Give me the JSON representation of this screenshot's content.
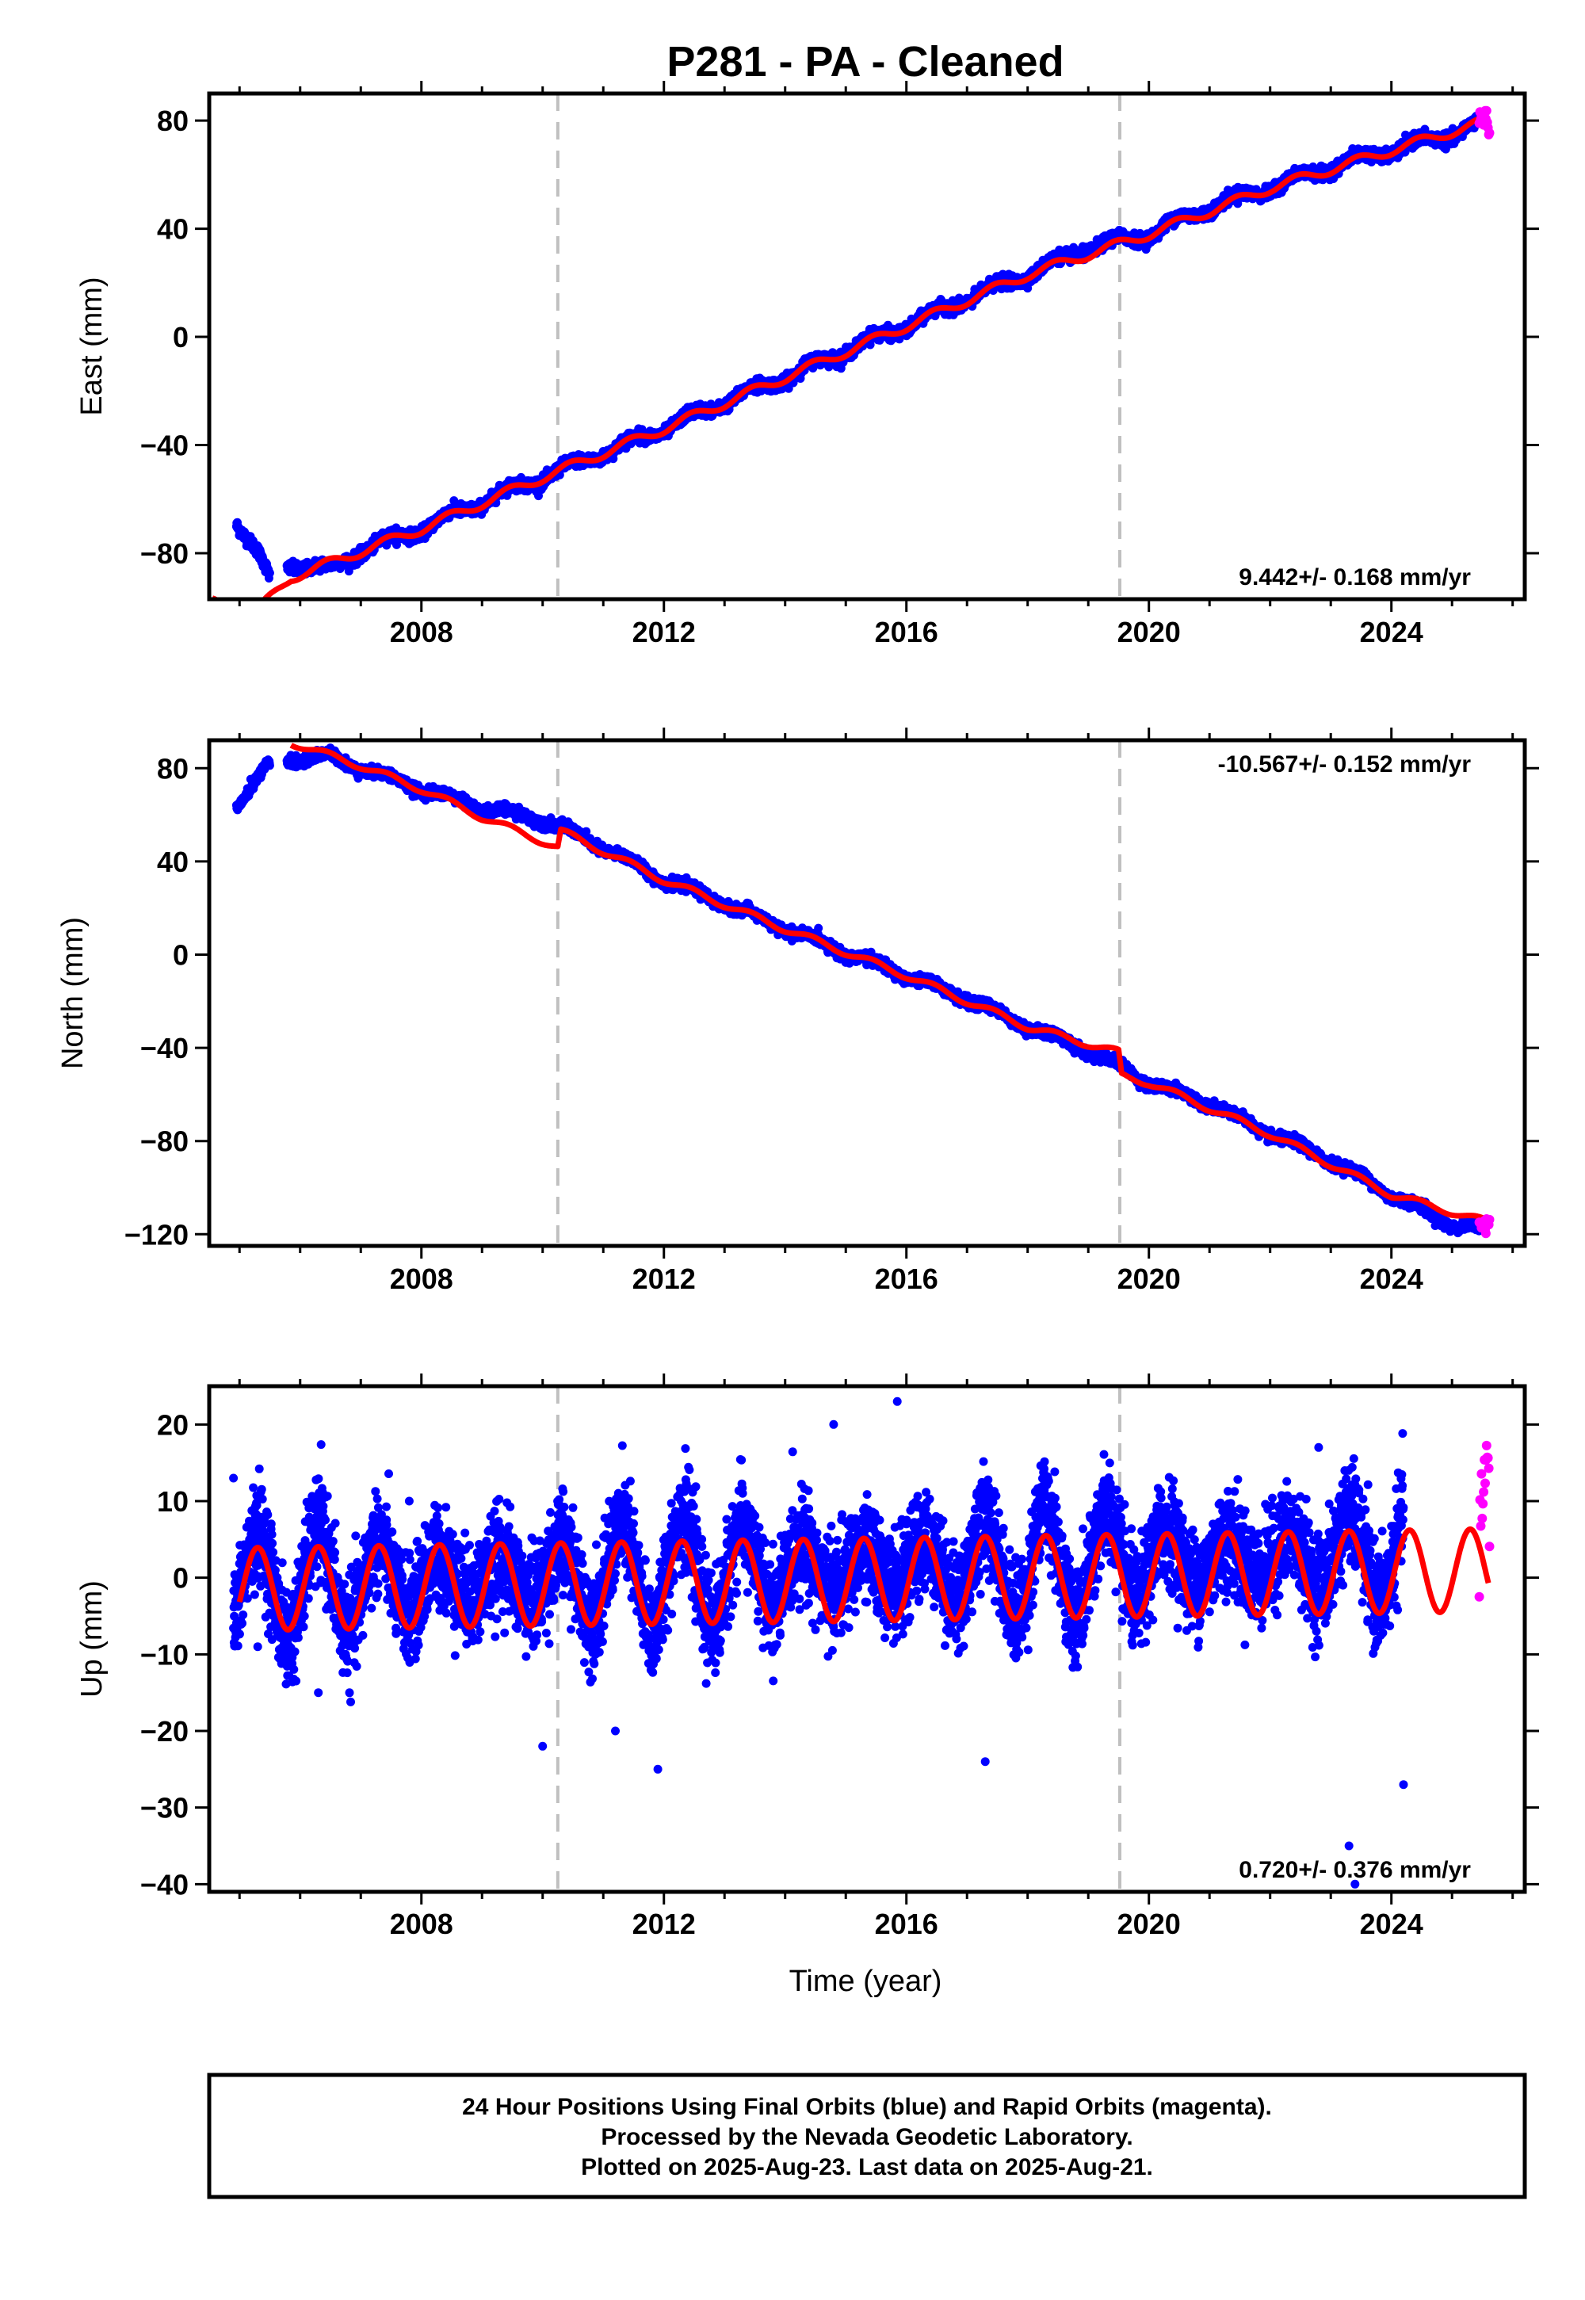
{
  "title": "P281  - PA - Cleaned",
  "colors": {
    "final_orbits": "#0000ff",
    "rapid_orbits": "#ff00ff",
    "model": "#ff0000",
    "break_line": "#c0c0c0",
    "frame": "#000000"
  },
  "x_tick_labels": [
    "2008",
    "2012",
    "2016",
    "2020",
    "2024"
  ],
  "xlabel": "Time (year)",
  "footer": {
    "line1": "24 Hour Positions Using Final Orbits (blue) and Rapid Orbits (magenta).",
    "line2": "Processed by the Nevada Geodetic Laboratory.",
    "line3": "Plotted on 2025-Aug-23. Last data on 2025-Aug-21."
  },
  "chart_data": [
    {
      "type": "scatter",
      "component": "east",
      "ylabel": "East (mm)",
      "xlim": [
        2004.5,
        2026.2
      ],
      "ylim": [
        -97,
        90
      ],
      "x_ticks": [
        2008,
        2012,
        2016,
        2020,
        2024
      ],
      "y_ticks": [
        80,
        40,
        0,
        -40,
        -80
      ],
      "y_tick_labels": [
        "80",
        "40",
        "0",
        "−40",
        "−80"
      ],
      "rate_label": "9.442+/- 0.168 mm/yr",
      "rate_position": "bottom-right",
      "equipment_breaks": [
        2010.25,
        2019.52
      ],
      "rate_mm_per_yr": 9.442,
      "seasonal_amplitude_mm": 2.5,
      "series": [
        {
          "role": "final_orbits",
          "points": [
            [
              2004.95,
              -68
            ],
            [
              2005.1,
              -73
            ],
            [
              2005.3,
              -80
            ],
            [
              2005.5,
              -90
            ],
            [
              2005.85,
              -84
            ],
            [
              2006.5,
              -86
            ],
            [
              2007.0,
              -79
            ],
            [
              2008.0,
              -71
            ],
            [
              2009.0,
              -61
            ],
            [
              2010.0,
              -52
            ],
            [
              2011.0,
              -43
            ],
            [
              2012.0,
              -34
            ],
            [
              2013.0,
              -24
            ],
            [
              2014.0,
              -15
            ],
            [
              2015.0,
              -5
            ],
            [
              2016.0,
              4
            ],
            [
              2017.0,
              14
            ],
            [
              2018.0,
              23
            ],
            [
              2019.0,
              33
            ],
            [
              2020.0,
              38
            ],
            [
              2021.0,
              48
            ],
            [
              2022.0,
              55
            ],
            [
              2023.0,
              63
            ],
            [
              2024.0,
              69
            ],
            [
              2025.0,
              75
            ],
            [
              2025.45,
              79
            ]
          ]
        },
        {
          "role": "rapid_orbits",
          "points": [
            [
              2025.48,
              80
            ],
            [
              2025.55,
              83
            ],
            [
              2025.6,
              78
            ]
          ]
        },
        {
          "role": "model",
          "points": [
            [
              2004.55,
              -98
            ],
            [
              2005.4,
              -99
            ],
            [
              2005.85,
              -89
            ],
            [
              2008.0,
              -71
            ],
            [
              2010.0,
              -52
            ],
            [
              2012.0,
              -34
            ],
            [
              2014.0,
              -15
            ],
            [
              2016.0,
              4
            ],
            [
              2018.0,
              23
            ],
            [
              2020.0,
              38
            ],
            [
              2022.0,
              55
            ],
            [
              2024.0,
              69
            ],
            [
              2025.6,
              80
            ]
          ]
        }
      ]
    },
    {
      "type": "scatter",
      "component": "north",
      "ylabel": "North (mm)",
      "xlim": [
        2004.5,
        2026.2
      ],
      "ylim": [
        -125,
        92
      ],
      "x_ticks": [
        2008,
        2012,
        2016,
        2020,
        2024
      ],
      "y_ticks": [
        80,
        40,
        0,
        -40,
        -80,
        -120
      ],
      "y_tick_labels": [
        "80",
        "40",
        "0",
        "−40",
        "−80",
        "−120"
      ],
      "rate_label": "-10.567+/- 0.152 mm/yr",
      "rate_position": "top-right",
      "equipment_breaks": [
        2010.25,
        2019.52
      ],
      "rate_mm_per_yr": -10.567,
      "seasonal_amplitude_mm": 2.0,
      "series": [
        {
          "role": "final_orbits",
          "points": [
            [
              2004.95,
              64
            ],
            [
              2005.2,
              72
            ],
            [
              2005.45,
              80
            ],
            [
              2005.8,
              84
            ],
            [
              2006.5,
              85
            ],
            [
              2007.0,
              80
            ],
            [
              2008.0,
              71
            ],
            [
              2009.0,
              63
            ],
            [
              2010.0,
              58
            ],
            [
              2011.0,
              46
            ],
            [
              2012.0,
              32
            ],
            [
              2013.0,
              22
            ],
            [
              2014.0,
              11
            ],
            [
              2015.0,
              1
            ],
            [
              2016.0,
              -9
            ],
            [
              2017.0,
              -19
            ],
            [
              2018.0,
              -31
            ],
            [
              2019.0,
              -41
            ],
            [
              2020.0,
              -55
            ],
            [
              2021.0,
              -64
            ],
            [
              2022.0,
              -77
            ],
            [
              2023.0,
              -88
            ],
            [
              2024.0,
              -103
            ],
            [
              2025.0,
              -116
            ],
            [
              2025.45,
              -117
            ]
          ]
        },
        {
          "role": "rapid_orbits",
          "points": [
            [
              2025.48,
              -115
            ],
            [
              2025.55,
              -117
            ],
            [
              2025.6,
              -114
            ]
          ]
        },
        {
          "role": "model",
          "points": [
            [
              2005.85,
              91
            ],
            [
              2007.0,
              81
            ],
            [
              2008.0,
              71
            ],
            [
              2009.0,
              59
            ],
            [
              2010.25,
              46
            ],
            [
              2010.3,
              53
            ],
            [
              2012.0,
              32
            ],
            [
              2014.0,
              11
            ],
            [
              2016.0,
              -9
            ],
            [
              2018.0,
              -31
            ],
            [
              2019.5,
              -42
            ],
            [
              2019.55,
              -52
            ],
            [
              2020.0,
              -55
            ],
            [
              2022.0,
              -77
            ],
            [
              2024.0,
              -103
            ],
            [
              2025.6,
              -115
            ]
          ]
        }
      ]
    },
    {
      "type": "scatter",
      "component": "up",
      "ylabel": "Up (mm)",
      "xlim": [
        2004.5,
        2026.2
      ],
      "ylim": [
        -41,
        25
      ],
      "x_ticks": [
        2008,
        2012,
        2016,
        2020,
        2024
      ],
      "y_ticks": [
        20,
        10,
        0,
        -10,
        -20,
        -30,
        -40
      ],
      "y_tick_labels": [
        "20",
        "10",
        "0",
        "−10",
        "−20",
        "−30",
        "−40"
      ],
      "rate_label": "0.720+/- 0.376 mm/yr",
      "rate_position": "bottom-right",
      "equipment_breaks": [
        2010.25,
        2019.52
      ],
      "rate_mm_per_yr": 0.72,
      "seasonal_amplitude_mm": 6.0,
      "series": [
        {
          "role": "final_orbits",
          "points": [
            [
              2004.9,
              13
            ],
            [
              2005.3,
              -9
            ],
            [
              2006.3,
              -15
            ],
            [
              2007.8,
              10
            ],
            [
              2010.0,
              -22
            ],
            [
              2011.2,
              -20
            ],
            [
              2011.9,
              -25
            ],
            [
              2014.8,
              20
            ],
            [
              2015.85,
              23
            ],
            [
              2017.3,
              -24
            ],
            [
              2022.8,
              17
            ],
            [
              2023.3,
              -35
            ],
            [
              2023.4,
              -40
            ],
            [
              2024.2,
              -27
            ]
          ]
        },
        {
          "role": "rapid_orbits",
          "points": [
            [
              2025.45,
              4
            ],
            [
              2025.5,
              9
            ],
            [
              2025.55,
              17
            ],
            [
              2025.6,
              12
            ],
            [
              2025.62,
              6
            ]
          ]
        },
        {
          "role": "model",
          "points": [
            [
              2005.0,
              -1.5
            ],
            [
              2005.35,
              -9
            ],
            [
              2005.9,
              1
            ],
            [
              2006.35,
              -9
            ],
            [
              2010.0,
              4
            ],
            [
              2010.3,
              -7
            ],
            [
              2012.0,
              -6
            ],
            [
              2016.0,
              -3
            ],
            [
              2019.5,
              5
            ],
            [
              2019.55,
              0
            ],
            [
              2020.0,
              -5
            ],
            [
              2025.0,
              6
            ],
            [
              2025.6,
              0
            ]
          ]
        }
      ]
    }
  ]
}
